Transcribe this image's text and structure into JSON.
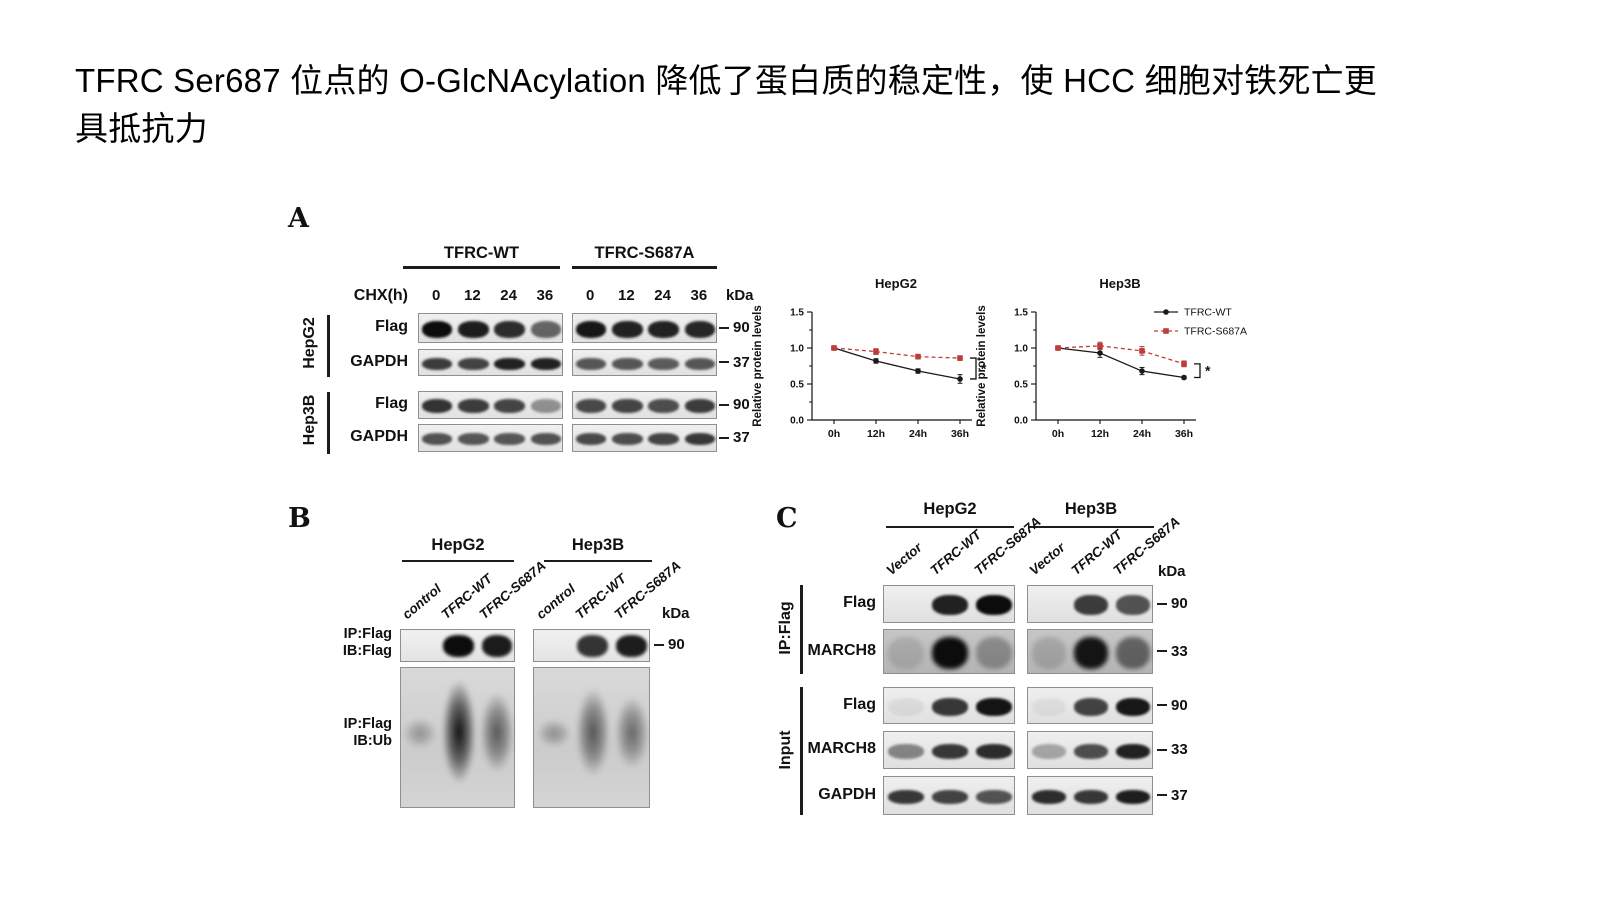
{
  "title": {
    "text": "TFRC Ser687 位点的 O-GlcNAcylation 降低了蛋白质的稳定性，使 HCC 细胞对铁死亡更具抵抗力"
  },
  "colors": {
    "wt": "#1a1a1a",
    "mutant": "#bc3e3c",
    "axis": "#111111"
  },
  "panelA": {
    "label": "A",
    "group_headers": [
      "TFRC-WT",
      "TFRC-S687A"
    ],
    "chx_label": "CHX(h)",
    "timepoints": [
      "0",
      "12",
      "24",
      "36"
    ],
    "kda_label": "kDa",
    "cell_groups": [
      {
        "cell": "HepG2",
        "rows": [
          {
            "protein": "Flag",
            "marker": "90",
            "bands": [
              [
                1.0,
                0.92,
                0.85,
                0.6
              ],
              [
                0.95,
                0.9,
                0.9,
                0.88
              ]
            ]
          },
          {
            "protein": "GAPDH",
            "marker": "37",
            "bands": [
              [
                0.78,
                0.75,
                0.9,
                0.9
              ],
              [
                0.66,
                0.66,
                0.64,
                0.66
              ]
            ]
          }
        ]
      },
      {
        "cell": "Hep3B",
        "rows": [
          {
            "protein": "Flag",
            "marker": "90",
            "bands": [
              [
                0.82,
                0.78,
                0.74,
                0.4
              ],
              [
                0.72,
                0.74,
                0.7,
                0.78
              ]
            ]
          },
          {
            "protein": "GAPDH",
            "marker": "37",
            "bands": [
              [
                0.68,
                0.66,
                0.66,
                0.68
              ],
              [
                0.72,
                0.7,
                0.74,
                0.8
              ]
            ]
          }
        ]
      }
    ]
  },
  "chart_data": [
    {
      "type": "line",
      "title": "HepG2",
      "ylabel": "Relative protein levels",
      "x_categories": [
        "0h",
        "12h",
        "24h",
        "36h"
      ],
      "ylim": [
        0.0,
        1.5
      ],
      "yticks": [
        0.0,
        0.5,
        1.0,
        1.5
      ],
      "grid": false,
      "legend_visible": false,
      "significance": "*",
      "series": [
        {
          "name": "TFRC-WT",
          "color": "#1a1a1a",
          "marker": "circle",
          "linestyle": "solid",
          "values": [
            1.0,
            0.82,
            0.68,
            0.57
          ],
          "errors": [
            0.02,
            0.03,
            0.03,
            0.06
          ]
        },
        {
          "name": "TFRC-S687A",
          "color": "#bc3e3c",
          "marker": "square",
          "linestyle": "dashed",
          "values": [
            1.0,
            0.95,
            0.88,
            0.86
          ],
          "errors": [
            0.02,
            0.04,
            0.03,
            0.03
          ]
        }
      ]
    },
    {
      "type": "line",
      "title": "Hep3B",
      "ylabel": "Relative protein levels",
      "x_categories": [
        "0h",
        "12h",
        "24h",
        "36h"
      ],
      "ylim": [
        0.0,
        1.5
      ],
      "yticks": [
        0.0,
        0.5,
        1.0,
        1.5
      ],
      "grid": false,
      "legend_visible": true,
      "legend_position": "right",
      "significance": "*",
      "series": [
        {
          "name": "TFRC-WT",
          "color": "#1a1a1a",
          "marker": "circle",
          "linestyle": "solid",
          "values": [
            1.0,
            0.93,
            0.68,
            0.59
          ],
          "errors": [
            0.02,
            0.06,
            0.05,
            0.02
          ]
        },
        {
          "name": "TFRC-S687A",
          "color": "#bc3e3c",
          "marker": "square",
          "linestyle": "dashed",
          "values": [
            1.0,
            1.03,
            0.96,
            0.78
          ],
          "errors": [
            0.02,
            0.05,
            0.06,
            0.04
          ]
        }
      ]
    }
  ],
  "panelB": {
    "label": "B",
    "kda_label": "kDa",
    "top_marker": "90",
    "row_labels": [
      {
        "line1": "IP:Flag",
        "line2": "IB:Flag"
      },
      {
        "line1": "IP:Flag",
        "line2": "IB:Ub"
      }
    ],
    "groups": [
      {
        "name": "HepG2",
        "lanes": [
          "control",
          "TFRC-WT",
          "TFRC-S687A"
        ],
        "top_bands": [
          0,
          1.0,
          0.93
        ],
        "smears": [
          {
            "intensity": 0.3,
            "height": 0.16
          },
          {
            "intensity": 0.97,
            "height": 0.55
          },
          {
            "intensity": 0.6,
            "height": 0.42
          }
        ]
      },
      {
        "name": "Hep3B",
        "lanes": [
          "control",
          "TFRC-WT",
          "TFRC-S687A"
        ],
        "top_bands": [
          0,
          0.82,
          0.92
        ],
        "smears": [
          {
            "intensity": 0.32,
            "height": 0.15
          },
          {
            "intensity": 0.62,
            "height": 0.46
          },
          {
            "intensity": 0.52,
            "height": 0.38
          }
        ]
      }
    ]
  },
  "panelC": {
    "label": "C",
    "kda_label": "kDa",
    "groups": [
      "HepG2",
      "Hep3B"
    ],
    "lanes": [
      "Vector",
      "TFRC-WT",
      "TFRC-S687A"
    ],
    "sections": [
      {
        "name": "IP:Flag",
        "rows": [
          {
            "protein": "Flag",
            "marker": "90",
            "bg": "light",
            "bands": [
              [
                0,
                0.9,
                1.0
              ],
              [
                0,
                0.78,
                0.68
              ]
            ]
          },
          {
            "protein": "MARCH8",
            "marker": "33",
            "bg": "dark",
            "bands": [
              [
                0.12,
                1.0,
                0.3
              ],
              [
                0.15,
                0.95,
                0.52
              ]
            ]
          }
        ]
      },
      {
        "name": "Input",
        "rows": [
          {
            "protein": "Flag",
            "marker": "90",
            "bg": "light",
            "bands": [
              [
                0.06,
                0.8,
                0.96
              ],
              [
                0.05,
                0.75,
                0.95
              ]
            ]
          },
          {
            "protein": "MARCH8",
            "marker": "33",
            "bg": "light",
            "bands": [
              [
                0.45,
                0.8,
                0.85
              ],
              [
                0.3,
                0.7,
                0.9
              ]
            ]
          },
          {
            "protein": "GAPDH",
            "marker": "37",
            "bg": "light",
            "bands": [
              [
                0.8,
                0.75,
                0.68
              ],
              [
                0.85,
                0.8,
                0.92
              ]
            ]
          }
        ]
      }
    ]
  }
}
